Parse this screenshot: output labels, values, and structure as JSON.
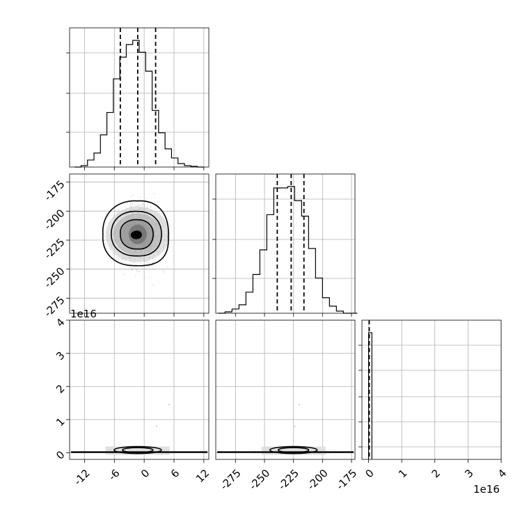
{
  "chart_data": {
    "type": "corner",
    "parameters": 3,
    "grid": true,
    "quantile_lines": "dashed",
    "histograms": [
      {
        "panel": "p0_hist",
        "bins": [
          -14,
          -12.7,
          -11.4,
          -10.1,
          -8.8,
          -7.5,
          -6.2,
          -4.9,
          -3.6,
          -2.3,
          -1.0,
          0.3,
          1.6,
          2.9,
          4.2,
          5.5,
          6.8,
          8.1,
          9.4,
          10.7,
          12
        ],
        "counts": [
          0,
          2,
          10,
          20,
          46,
          78,
          126,
          157,
          175,
          181,
          164,
          137,
          81,
          49,
          26,
          13,
          5,
          2,
          1,
          0
        ],
        "quantiles": [
          -4.8,
          -1.3,
          2.3
        ],
        "xlim": [
          -15,
          13
        ]
      },
      {
        "panel": "p1_hist",
        "bins": [
          -290,
          -284,
          -278,
          -272,
          -266,
          -260,
          -254,
          -248,
          -242,
          -236,
          -230,
          -224,
          -218,
          -212,
          -206,
          -200,
          -194,
          -188,
          -182,
          -176,
          -170
        ],
        "counts": [
          0,
          2,
          6,
          12,
          30,
          55,
          90,
          140,
          178,
          178,
          180,
          160,
          138,
          92,
          50,
          22,
          10,
          3,
          0,
          0
        ],
        "quantiles": [
          -239,
          -227,
          -216
        ],
        "xlim": [
          -292,
          -172
        ]
      },
      {
        "panel": "p2_hist",
        "bins": [
          0,
          1000000000000000.0,
          2000000000000000.0
        ],
        "counts": [
          1,
          0
        ],
        "quantiles": [
          200000000000000.0
        ],
        "xlim": [
          -2000000000000000.0,
          4e+16
        ]
      }
    ],
    "scatter": [
      {
        "panel": "p1_vs_p0",
        "x_param": 0,
        "y_param": 1,
        "center": [
          -1.3,
          -220
        ],
        "spread": [
          3.5,
          19
        ],
        "xlim": [
          -15,
          13
        ],
        "ylim": [
          -288,
          -168
        ]
      },
      {
        "panel": "p2_vs_p0",
        "x_param": 0,
        "y_param": 2,
        "center": [
          -1.3,
          200000000000000.0
        ],
        "outliers": [
          [
            5,
            1.45e+16
          ],
          [
            2.5,
            8000000000000000.0
          ]
        ],
        "xlim": [
          -15,
          13
        ],
        "ylim": [
          -2000000000000000.0,
          4e+16
        ]
      },
      {
        "panel": "p2_vs_p1",
        "x_param": 1,
        "y_param": 2,
        "center": [
          -225,
          200000000000000.0
        ],
        "outliers": [
          [
            -220,
            1.45e+16
          ],
          [
            -224,
            8000000000000000.0
          ]
        ],
        "xlim": [
          -292,
          -172
        ],
        "ylim": [
          -2000000000000000.0,
          4e+16
        ]
      }
    ],
    "axes": {
      "p0_ticks": [
        "-12",
        "-6",
        "0",
        "6",
        "12"
      ],
      "p1_ticks": [
        "-275",
        "-250",
        "-225",
        "-200",
        "-175"
      ],
      "p2_ticks": [
        "0",
        "1",
        "2",
        "3",
        "4"
      ],
      "p2_offset": "1e16"
    }
  }
}
